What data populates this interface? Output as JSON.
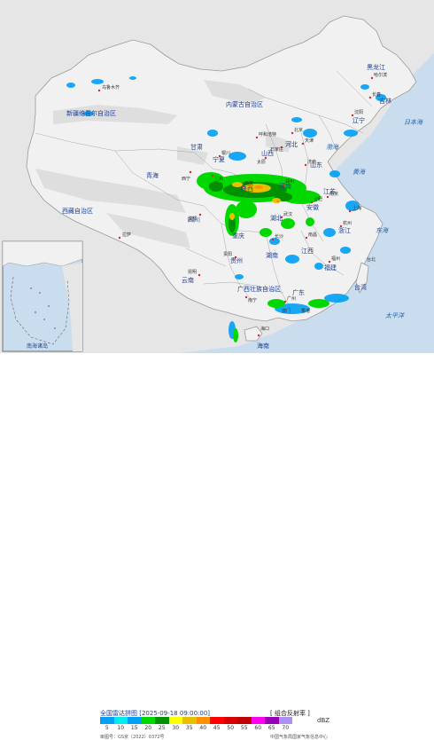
{
  "map": {
    "regions": {
      "heilongjiang": "黑龙江",
      "jilin": "吉林",
      "liaoning": "辽宁",
      "inner_mongolia": "内蒙古自治区",
      "xinjiang": "新疆维吾尔自治区",
      "tibet": "西藏自治区",
      "qinghai": "青海",
      "gansu": "甘肃",
      "ningxia": "宁夏",
      "shaanxi": "陕西",
      "shanxi": "山西",
      "hebei": "河北",
      "shandong": "山东",
      "henan": "河南",
      "jiangsu": "江苏",
      "anhui": "安徽",
      "hubei": "湖北",
      "sichuan": "四川",
      "chongqing": "重庆",
      "hunan": "湖南",
      "jiangxi": "江西",
      "zhejiang": "浙江",
      "fujian": "福建",
      "guizhou": "贵州",
      "yunnan": "云南",
      "guangxi": "广西壮族自治区",
      "guangdong": "广东",
      "hainan": "海南",
      "taiwan": "台湾"
    },
    "cities": {
      "urumqi": "乌鲁木齐",
      "lhasa": "拉萨",
      "xining": "西宁",
      "lanzhou": "兰州",
      "yinchuan": "银川",
      "hohhot": "呼和浩特",
      "beijing": "北京",
      "tianjin": "天津",
      "shijiazhuang": "石家庄",
      "taiyuan": "太原",
      "jinan": "济南",
      "zhengzhou": "郑州",
      "xian": "西安",
      "chengdu": "成都",
      "wuhan": "武汉",
      "hefei": "合肥",
      "nanjing": "南京",
      "shanghai": "上海",
      "hangzhou": "杭州",
      "changsha": "长沙",
      "nanchang": "南昌",
      "fuzhou": "福州",
      "guiyang": "贵阳",
      "kunming": "昆明",
      "nanning": "南宁",
      "guangzhou": "广州",
      "haikou": "海口",
      "harbin": "哈尔滨",
      "changchun": "长春",
      "shenyang": "沈阳",
      "hongkong": "香港",
      "macau": "澳门",
      "taipei": "台北"
    },
    "seas": {
      "bohai": "渤海",
      "yellow_sea": "黄海",
      "east_sea": "东海",
      "pacific": "太平洋",
      "japan_sea": "日本海"
    },
    "inset_label": "南海诸岛"
  },
  "footer": {
    "title": "全国雷达拼图 [2025-09-18 09:00:00]",
    "product": "[ 组合反射率 ]",
    "unit": "dBZ",
    "approval": "审图号：GS京（2022）0372号",
    "source": "中国气象局国家气象信息中心"
  },
  "legend": {
    "ticks": [
      "5",
      "10",
      "15",
      "20",
      "25",
      "30",
      "35",
      "40",
      "45",
      "50",
      "55",
      "60",
      "65",
      "70"
    ],
    "colors": [
      "#00a0f5",
      "#00ebeb",
      "#01a0f6",
      "#00d800",
      "#019000",
      "#ffff00",
      "#e7c000",
      "#ff9000",
      "#ff0000",
      "#d60000",
      "#c00000",
      "#ff00f0",
      "#9600b4",
      "#ad90f0"
    ]
  },
  "colors": {
    "land": "#f1f1f1",
    "sea": "#c9ddee",
    "relief": "#dcdcdc",
    "border": "#9a9a9a",
    "label": "#1f3f8f",
    "echo_light": "#00a0f5",
    "echo_green": "#00d800",
    "echo_dark": "#019000",
    "echo_yellow": "#e7c000",
    "echo_orange": "#ff9000"
  }
}
